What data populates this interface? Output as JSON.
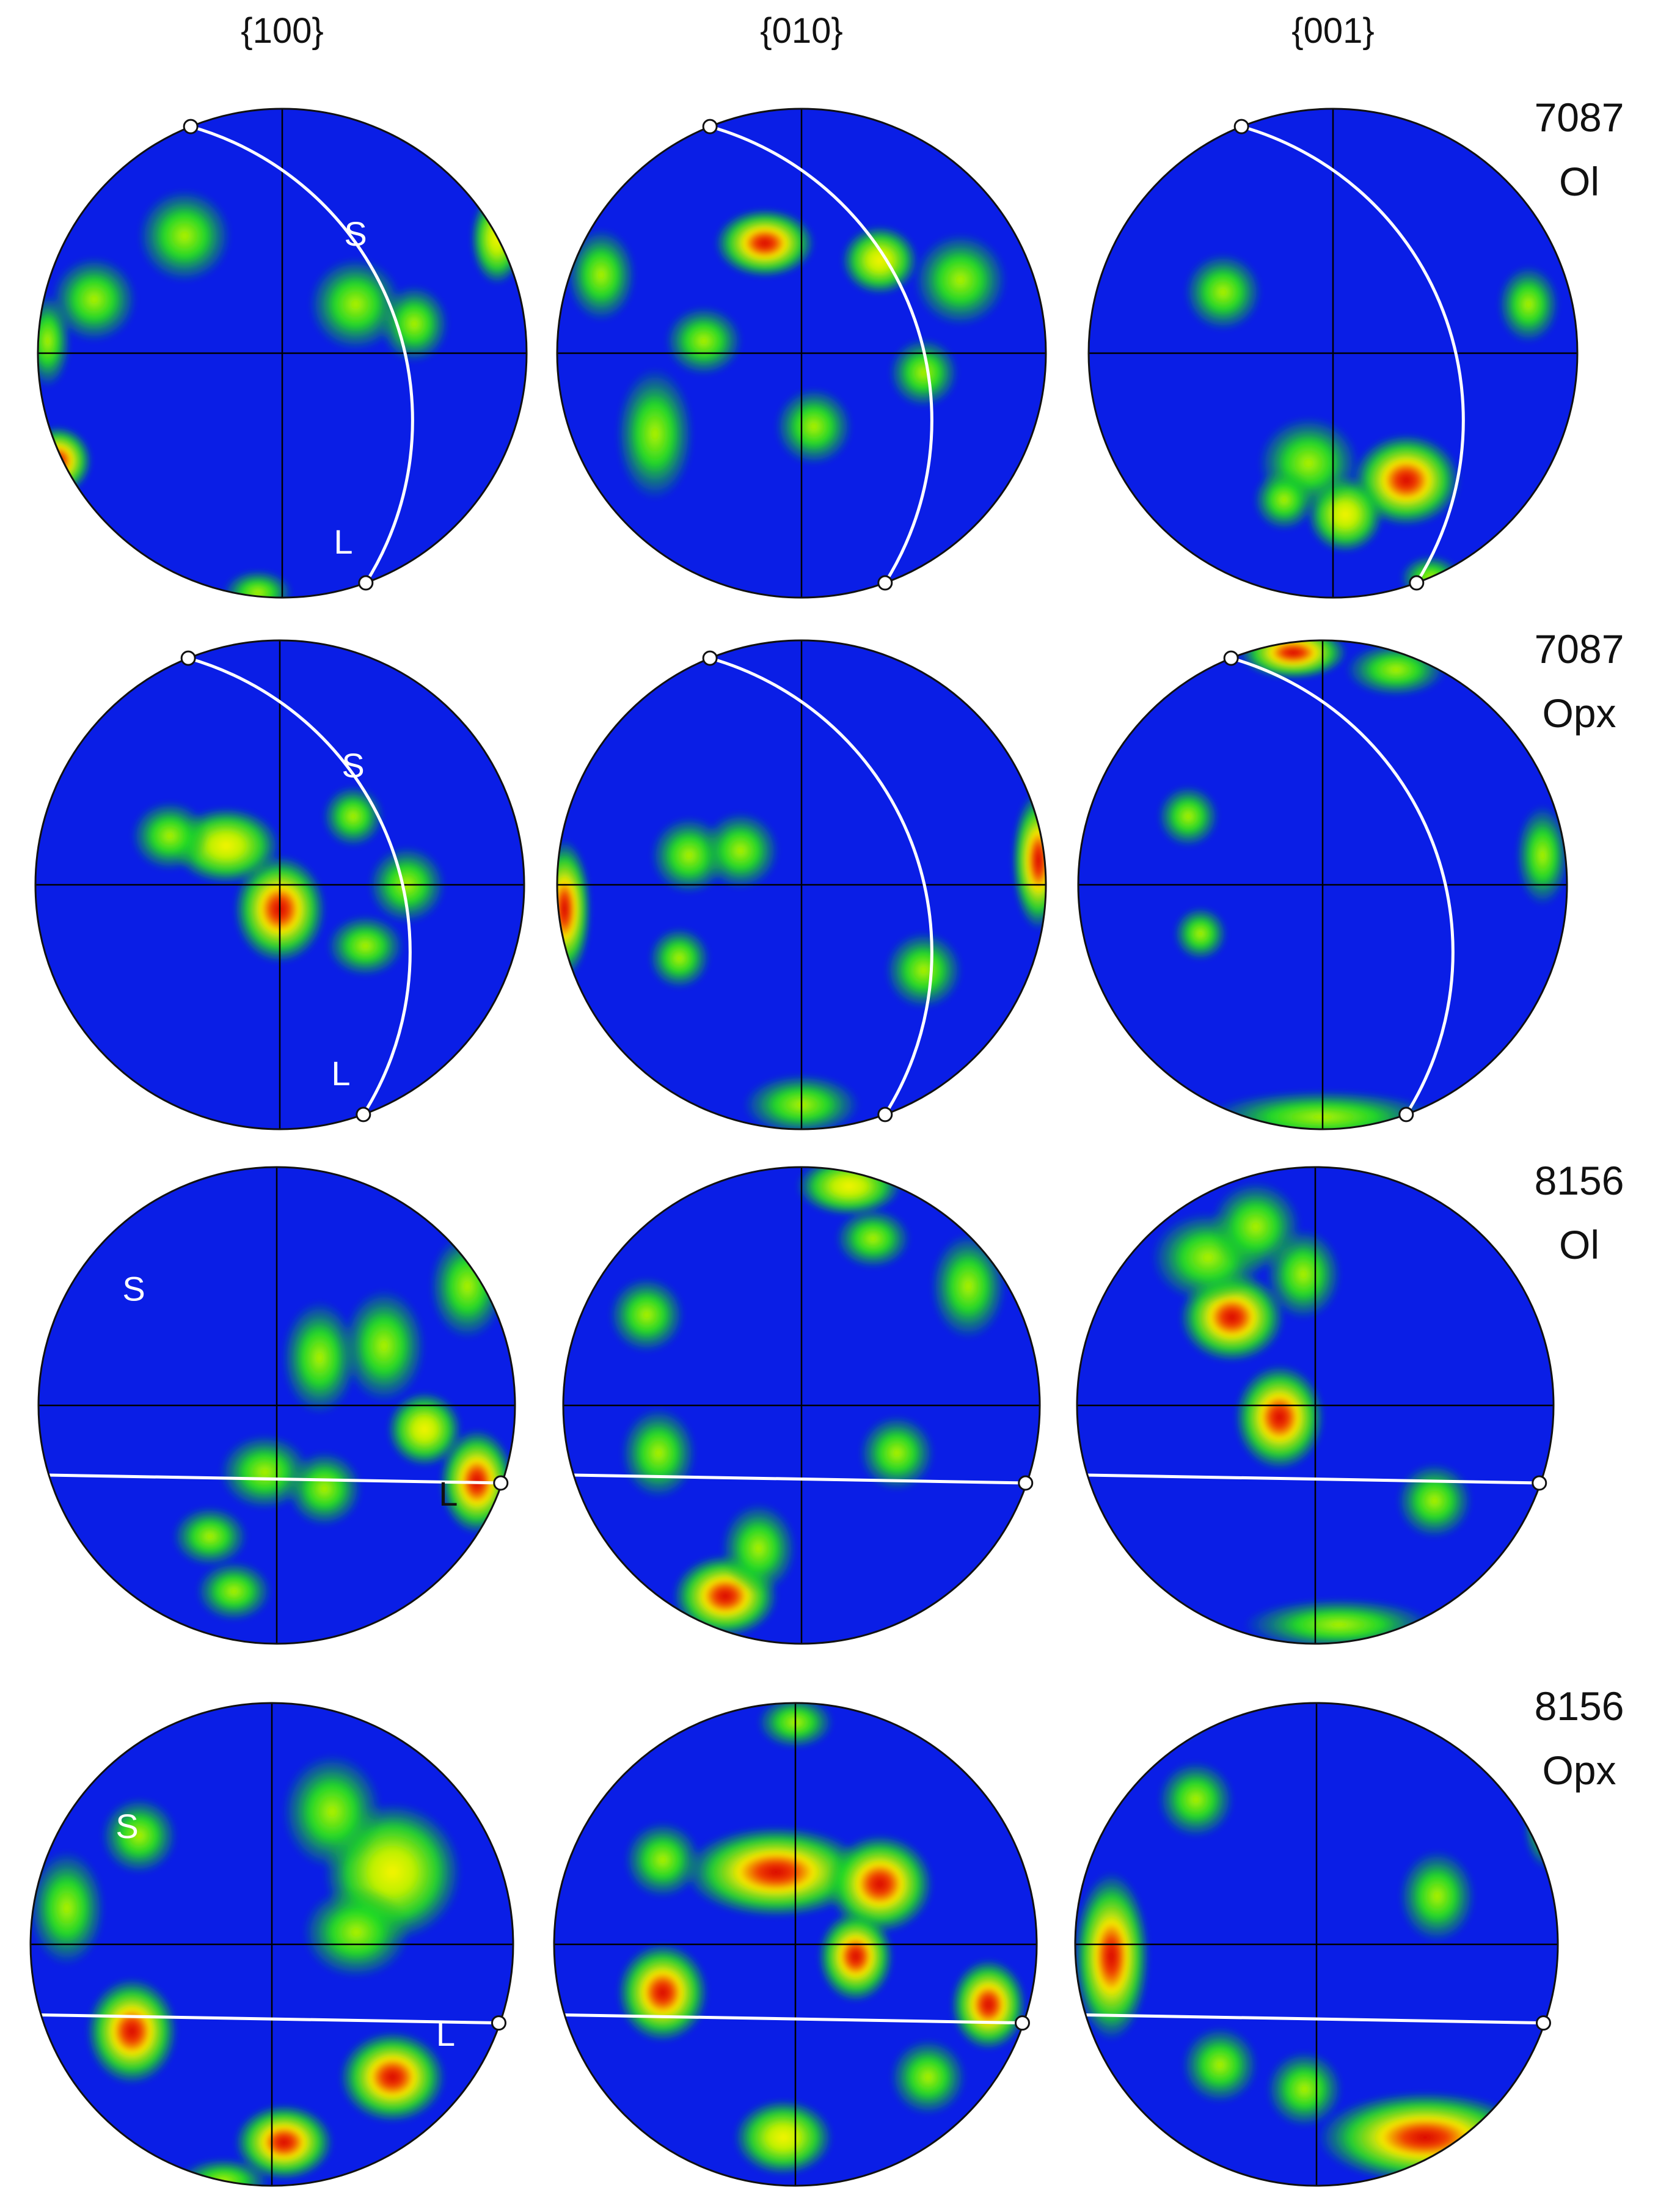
{
  "column_headers": [
    "{100}",
    "{010}",
    "{001}"
  ],
  "rows": [
    {
      "sample": "7087",
      "mineral": "Ol",
      "foliation_label": "S",
      "lineation_label": "L",
      "foliation_type": "arc",
      "panels": [
        {
          "column": "{100}",
          "show_S": true,
          "show_L": true
        },
        {
          "column": "{010}",
          "show_S": false,
          "show_L": false
        },
        {
          "column": "{001}",
          "show_S": false,
          "show_L": false
        }
      ]
    },
    {
      "sample": "7087",
      "mineral": "Opx",
      "foliation_label": "S",
      "lineation_label": "L",
      "foliation_type": "arc",
      "panels": [
        {
          "column": "{100}",
          "show_S": true,
          "show_L": true
        },
        {
          "column": "{010}",
          "show_S": false,
          "show_L": false
        },
        {
          "column": "{001}",
          "show_S": false,
          "show_L": false
        }
      ]
    },
    {
      "sample": "8156",
      "mineral": "Ol",
      "foliation_label": "S",
      "lineation_label": "L",
      "foliation_type": "line",
      "panels": [
        {
          "column": "{100}",
          "show_S": true,
          "show_L": true
        },
        {
          "column": "{010}",
          "show_S": false,
          "show_L": false
        },
        {
          "column": "{001}",
          "show_S": false,
          "show_L": false
        }
      ]
    },
    {
      "sample": "8156",
      "mineral": "Opx",
      "foliation_label": "S",
      "lineation_label": "L",
      "foliation_type": "line",
      "panels": [
        {
          "column": "{100}",
          "show_S": true,
          "show_L": true
        },
        {
          "column": "{010}",
          "show_S": false,
          "show_L": false
        },
        {
          "column": "{001}",
          "show_S": false,
          "show_L": false
        }
      ]
    }
  ],
  "colors": {
    "background_density": "#0a1ee6",
    "low_density": "#19e619",
    "mid_density": "#d9f000",
    "high_density": "#e60000",
    "foliation_trace": "#ffffff",
    "axes": "#000000"
  }
}
